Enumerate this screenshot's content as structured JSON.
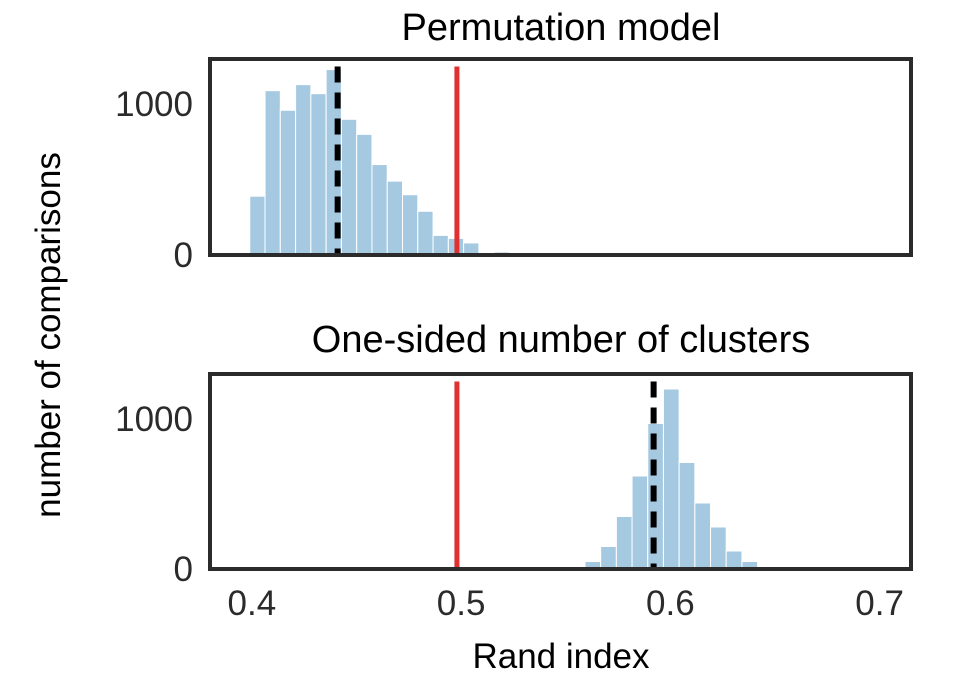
{
  "ylabel": "number of comparisons",
  "colors": {
    "bar": "#a6c9e2",
    "bar_edge": "#ffffff",
    "frame": "#2b2b2b",
    "observed_line": "#e03030",
    "mean_line": "#000000"
  },
  "chart_data": [
    {
      "type": "bar",
      "title": "Permutation model",
      "xlabel": "",
      "xlim": [
        0.38,
        0.715
      ],
      "ylim": [
        0,
        1300
      ],
      "yticks": [
        "0",
        "1000"
      ],
      "ytick_values": [
        0,
        1000
      ],
      "xticks": [],
      "xtick_values": [],
      "grid": false,
      "bin_width": 0.0073,
      "bin_starts": [
        0.399,
        0.4063,
        0.4136,
        0.4209,
        0.4282,
        0.4355,
        0.4428,
        0.4501,
        0.4574,
        0.4647,
        0.472,
        0.4793,
        0.4866,
        0.4939,
        0.5012,
        0.5085,
        0.5158,
        0.5231
      ],
      "values": [
        390,
        1090,
        960,
        1130,
        1070,
        1230,
        900,
        800,
        600,
        490,
        400,
        290,
        130,
        110,
        80,
        10,
        20,
        8
      ],
      "mean_line_x": 0.441,
      "observed_line_x": 0.498,
      "vline_ytop": 1250
    },
    {
      "type": "bar",
      "title": "One-sided number of clusters",
      "xlabel": "Rand index",
      "xlim": [
        0.38,
        0.715
      ],
      "ylim": [
        0,
        1300
      ],
      "yticks": [
        "0",
        "1000"
      ],
      "ytick_values": [
        0,
        1000
      ],
      "xticks": [
        "0.4",
        "0.5",
        "0.6",
        "0.7"
      ],
      "xtick_values": [
        0.4,
        0.5,
        0.6,
        0.7
      ],
      "grid": false,
      "bin_width": 0.0075,
      "bin_starts": [
        0.5592,
        0.5667,
        0.5742,
        0.5817,
        0.5892,
        0.5967,
        0.6042,
        0.6117,
        0.6192,
        0.6267,
        0.6342
      ],
      "values": [
        50,
        150,
        350,
        620,
        970,
        1200,
        710,
        440,
        280,
        120,
        50
      ],
      "mean_line_x": 0.592,
      "observed_line_x": 0.498,
      "vline_ytop": 1250
    }
  ]
}
